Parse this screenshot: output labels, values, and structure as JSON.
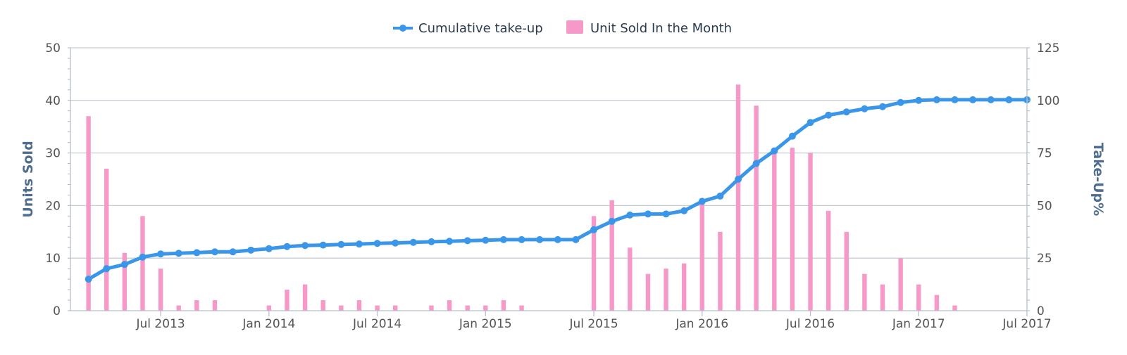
{
  "chart_data": {
    "type": "bar",
    "legend": {
      "placement": "top-center"
    },
    "grid": true,
    "x_axis": {
      "type": "datetime",
      "range": [
        "2013-02",
        "2017-07"
      ],
      "tick_labels": [
        "Jul 2013",
        "Jan 2014",
        "Jul 2014",
        "Jan 2015",
        "Jul 2015",
        "Jan 2016",
        "Jul 2016",
        "Jan 2017",
        "Jul 2017"
      ],
      "tick_dates": [
        "2013-07",
        "2014-01",
        "2014-07",
        "2015-01",
        "2015-07",
        "2016-01",
        "2016-07",
        "2017-01",
        "2017-07"
      ]
    },
    "y_axis_left": {
      "label": "Units Sold",
      "range": [
        0,
        50
      ],
      "ticks": [
        0,
        10,
        20,
        30,
        40,
        50
      ]
    },
    "y_axis_right": {
      "label": "Take-Up%",
      "range": [
        0,
        125
      ],
      "ticks": [
        0,
        25,
        50,
        75,
        100,
        125
      ]
    },
    "months": [
      "2013-03",
      "2013-04",
      "2013-05",
      "2013-06",
      "2013-07",
      "2013-08",
      "2013-09",
      "2013-10",
      "2013-11",
      "2013-12",
      "2014-01",
      "2014-02",
      "2014-03",
      "2014-04",
      "2014-05",
      "2014-06",
      "2014-07",
      "2014-08",
      "2014-09",
      "2014-10",
      "2014-11",
      "2014-12",
      "2015-01",
      "2015-02",
      "2015-03",
      "2015-04",
      "2015-05",
      "2015-06",
      "2015-07",
      "2015-08",
      "2015-09",
      "2015-10",
      "2015-11",
      "2015-12",
      "2016-01",
      "2016-02",
      "2016-03",
      "2016-04",
      "2016-05",
      "2016-06",
      "2016-07",
      "2016-08",
      "2016-09",
      "2016-10",
      "2016-11",
      "2016-12",
      "2017-01",
      "2017-02",
      "2017-03",
      "2017-04",
      "2017-05",
      "2017-06",
      "2017-07"
    ],
    "series": [
      {
        "name": "Unit Sold In the Month",
        "type": "bar",
        "axis": "left",
        "color": "#f799c8",
        "values": [
          37,
          27,
          11,
          18,
          8,
          1,
          2,
          2,
          0,
          0,
          1,
          4,
          5,
          2,
          1,
          2,
          1,
          1,
          0,
          1,
          2,
          1,
          1,
          2,
          1,
          0,
          0,
          0,
          18,
          21,
          12,
          7,
          8,
          9,
          21,
          15,
          43,
          39,
          30,
          31,
          30,
          19,
          15,
          7,
          5,
          10,
          5,
          3,
          1,
          0,
          0,
          0,
          0
        ]
      },
      {
        "name": "Cumulative take-up",
        "type": "line",
        "axis": "right",
        "color": "#3a96e8",
        "values": [
          15,
          20,
          22,
          25.5,
          27,
          27.3,
          27.6,
          28,
          28,
          28.8,
          29.5,
          30.5,
          31,
          31.2,
          31.5,
          31.7,
          32,
          32.2,
          32.5,
          32.8,
          33,
          33.3,
          33.5,
          33.8,
          33.8,
          33.8,
          33.8,
          33.8,
          38.5,
          42.5,
          45.5,
          46,
          46,
          47.5,
          52,
          54.5,
          62.5,
          70,
          76,
          83,
          89.5,
          93,
          94.5,
          96,
          97,
          99,
          100,
          100.3,
          100.3,
          100.3,
          100.3,
          100.3,
          100.3
        ]
      }
    ]
  }
}
